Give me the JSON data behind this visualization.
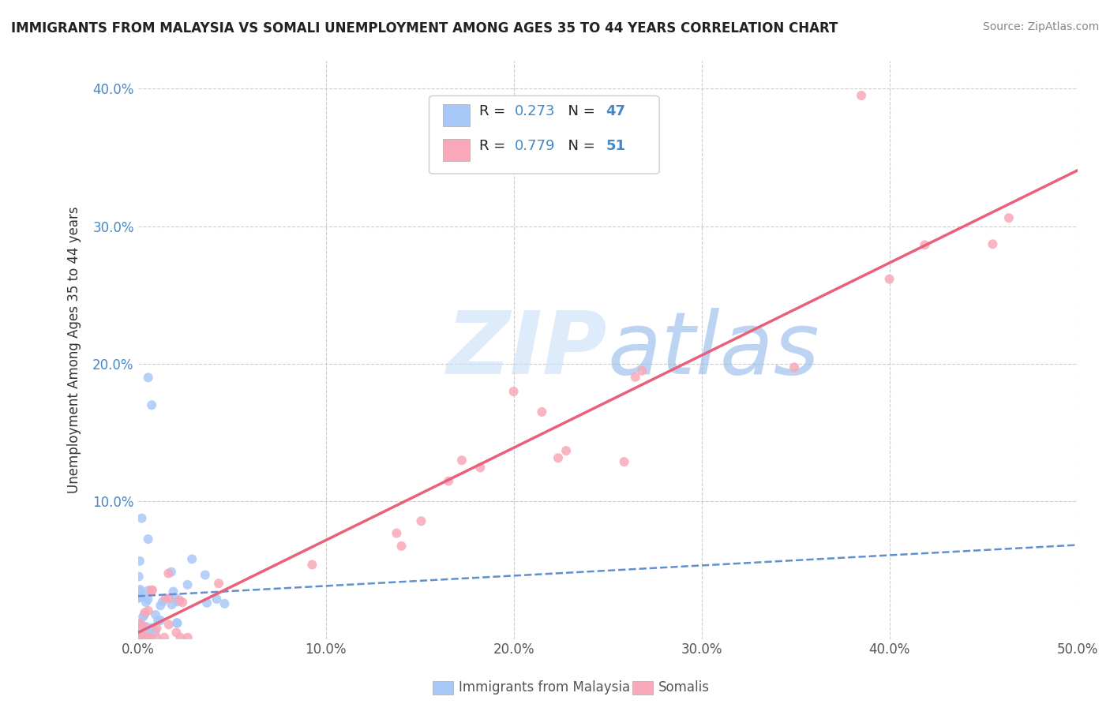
{
  "title": "IMMIGRANTS FROM MALAYSIA VS SOMALI UNEMPLOYMENT AMONG AGES 35 TO 44 YEARS CORRELATION CHART",
  "source": "Source: ZipAtlas.com",
  "ylabel": "Unemployment Among Ages 35 to 44 years",
  "xlim": [
    0,
    0.5
  ],
  "ylim": [
    0,
    0.42
  ],
  "xticks": [
    0.0,
    0.1,
    0.2,
    0.3,
    0.4,
    0.5
  ],
  "xtick_labels": [
    "0.0%",
    "10.0%",
    "20.0%",
    "30.0%",
    "40.0%",
    "50.0%"
  ],
  "yticks": [
    0.0,
    0.1,
    0.2,
    0.3,
    0.4
  ],
  "ytick_labels": [
    "",
    "10.0%",
    "20.0%",
    "30.0%",
    "40.0%"
  ],
  "color_malaysia": "#a8c8f8",
  "color_somali": "#f8a8b8",
  "color_trend_malaysia": "#6090d0",
  "color_trend_somali": "#e8607a",
  "watermark_zip": "ZIP",
  "watermark_atlas": "atlas",
  "watermark_color_zip": "#c8dff8",
  "watermark_color_atlas": "#90b8e8",
  "background_color": "#ffffff",
  "legend_r1_val": "0.273",
  "legend_n1_val": "47",
  "legend_r2_val": "0.779",
  "legend_n2_val": "51",
  "text_color_rn": "#4488cc",
  "text_color_label": "#222222",
  "ytick_color": "#4488cc",
  "xtick_color": "#555555",
  "grid_color": "#cccccc",
  "legend_bottom_1": "Immigrants from Malaysia",
  "legend_bottom_2": "Somalis"
}
